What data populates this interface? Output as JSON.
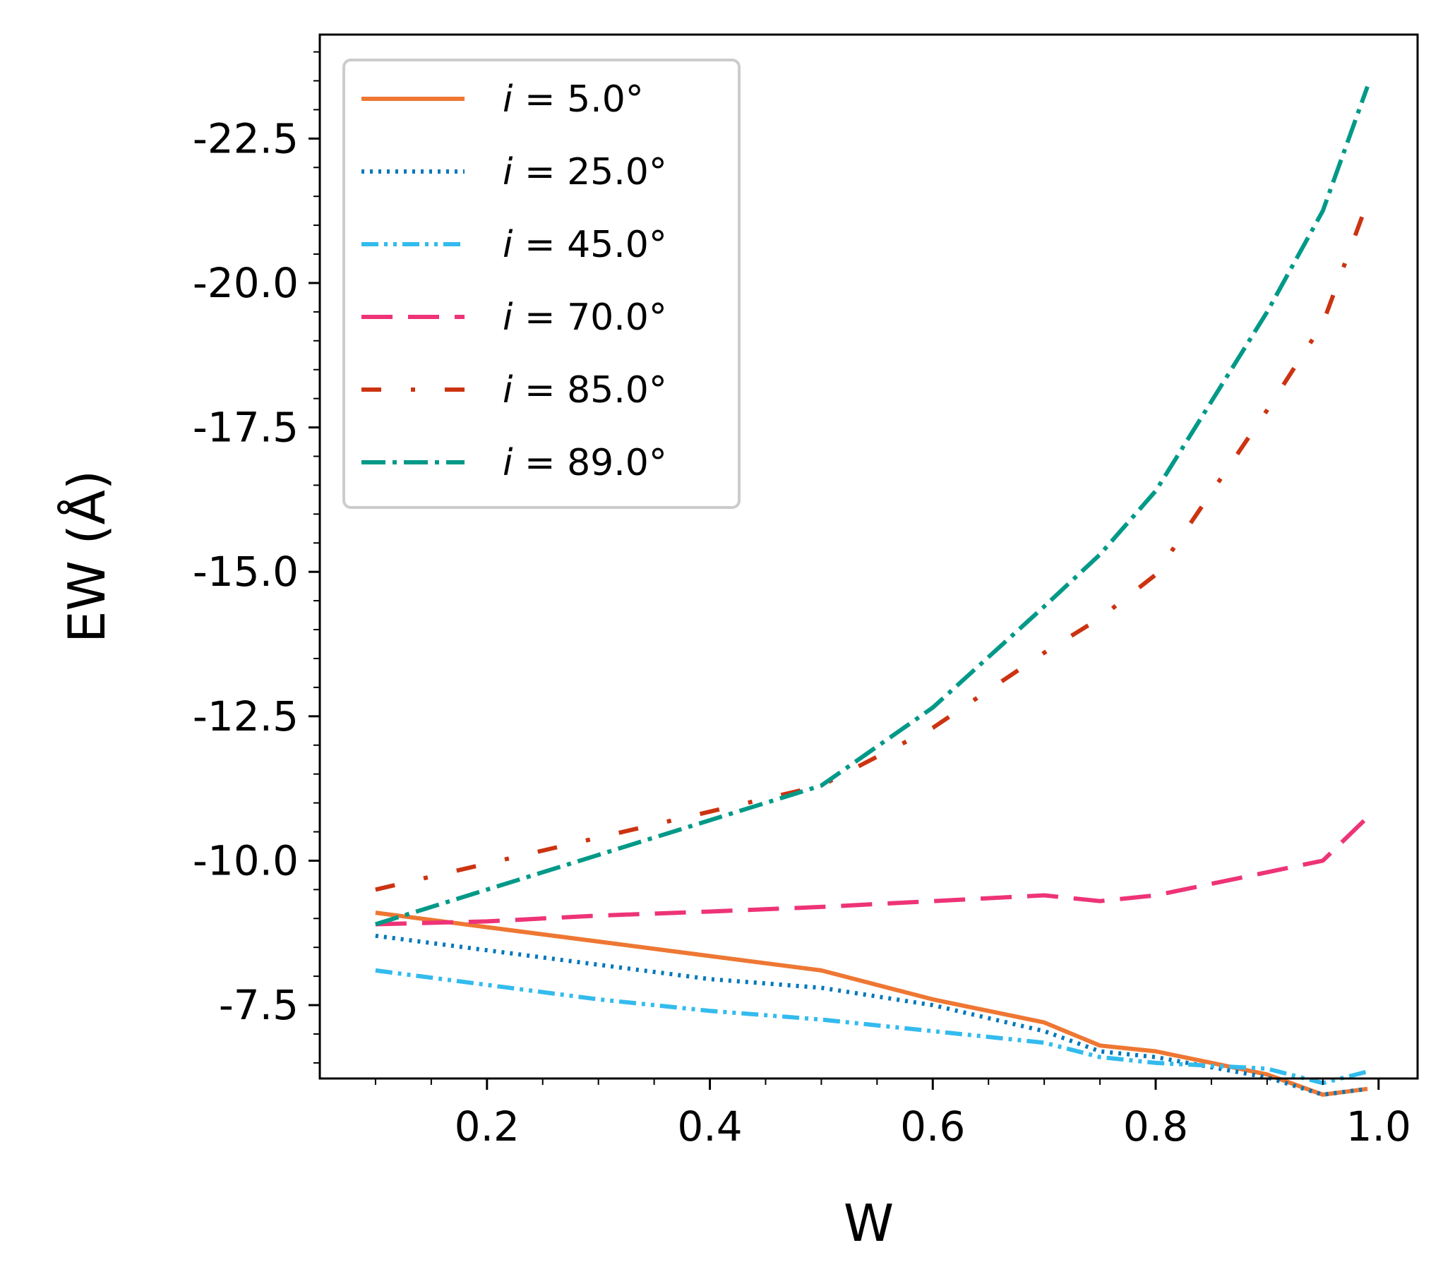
{
  "chart_data": {
    "type": "line",
    "title": "",
    "xlabel": "W",
    "ylabel": "EW (Å)",
    "xlim": [
      0.05,
      1.035
    ],
    "ylim": [
      -6.23,
      -24.3
    ],
    "xticks": [
      0.2,
      0.4,
      0.6,
      0.8,
      1.0
    ],
    "xtick_labels": [
      "0.2",
      "0.4",
      "0.6",
      "0.8",
      "1.0"
    ],
    "yticks": [
      -7.5,
      -10.0,
      -12.5,
      -15.0,
      -17.5,
      -20.0,
      -22.5
    ],
    "ytick_labels": [
      "-7.5",
      "-10.0",
      "-12.5",
      "-15.0",
      "-17.5",
      "-20.0",
      "-22.5"
    ],
    "legend_location": "upper-left",
    "series": [
      {
        "name": "i = 5.0°",
        "legend_prefix": "i",
        "legend_suffix": " = 5.0°",
        "color": "#EE7733",
        "dash": "solid",
        "x": [
          0.1,
          0.2,
          0.3,
          0.4,
          0.5,
          0.6,
          0.7,
          0.75,
          0.8,
          0.9,
          0.95,
          0.99
        ],
        "y": [
          -9.1,
          -8.85,
          -8.6,
          -8.35,
          -8.1,
          -7.6,
          -7.2,
          -6.8,
          -6.7,
          -6.3,
          -5.95,
          -6.05
        ]
      },
      {
        "name": "i = 25.0°",
        "legend_prefix": "i",
        "legend_suffix": " = 25.0°",
        "color": "#0077BB",
        "dash": "dotted",
        "x": [
          0.1,
          0.2,
          0.3,
          0.4,
          0.5,
          0.6,
          0.7,
          0.75,
          0.8,
          0.9,
          0.95,
          0.99
        ],
        "y": [
          -8.7,
          -8.45,
          -8.2,
          -7.95,
          -7.8,
          -7.5,
          -7.05,
          -6.7,
          -6.6,
          -6.25,
          -5.95,
          -6.05
        ]
      },
      {
        "name": "i = 45.0°",
        "legend_prefix": "i",
        "legend_suffix": " = 45.0°",
        "color": "#33BBEE",
        "dash": "dashdotdot",
        "x": [
          0.1,
          0.2,
          0.3,
          0.4,
          0.5,
          0.6,
          0.7,
          0.75,
          0.8,
          0.9,
          0.95,
          0.99
        ],
        "y": [
          -8.1,
          -7.85,
          -7.6,
          -7.4,
          -7.25,
          -7.05,
          -6.85,
          -6.6,
          -6.5,
          -6.4,
          -6.15,
          -6.35
        ]
      },
      {
        "name": "i = 70.0°",
        "legend_prefix": "i",
        "legend_suffix": " = 70.0°",
        "color": "#EE3377",
        "dash": "longdash",
        "x": [
          0.1,
          0.2,
          0.3,
          0.4,
          0.5,
          0.6,
          0.7,
          0.75,
          0.8,
          0.9,
          0.95,
          0.99
        ],
        "y": [
          -8.9,
          -8.95,
          -9.05,
          -9.12,
          -9.2,
          -9.3,
          -9.4,
          -9.3,
          -9.4,
          -9.8,
          -10.0,
          -10.75
        ]
      },
      {
        "name": "i = 85.0°",
        "legend_prefix": "i",
        "legend_suffix": " = 85.0°",
        "color": "#CC3311",
        "dash": "dashdotloose",
        "x": [
          0.1,
          0.2,
          0.3,
          0.4,
          0.5,
          0.6,
          0.7,
          0.75,
          0.8,
          0.9,
          0.95,
          0.99
        ],
        "y": [
          -9.5,
          -9.95,
          -10.4,
          -10.85,
          -11.3,
          -12.3,
          -13.6,
          -14.2,
          -14.95,
          -17.8,
          -19.3,
          -21.4
        ]
      },
      {
        "name": "i = 89.0°",
        "legend_prefix": "i",
        "legend_suffix": " = 89.0°",
        "color": "#009988",
        "dash": "dashdot",
        "x": [
          0.1,
          0.2,
          0.3,
          0.4,
          0.5,
          0.6,
          0.7,
          0.75,
          0.8,
          0.9,
          0.95,
          0.99
        ],
        "y": [
          -8.9,
          -9.5,
          -10.1,
          -10.7,
          -11.3,
          -12.65,
          -14.4,
          -15.3,
          -16.4,
          -19.5,
          -21.25,
          -23.4
        ]
      }
    ]
  }
}
